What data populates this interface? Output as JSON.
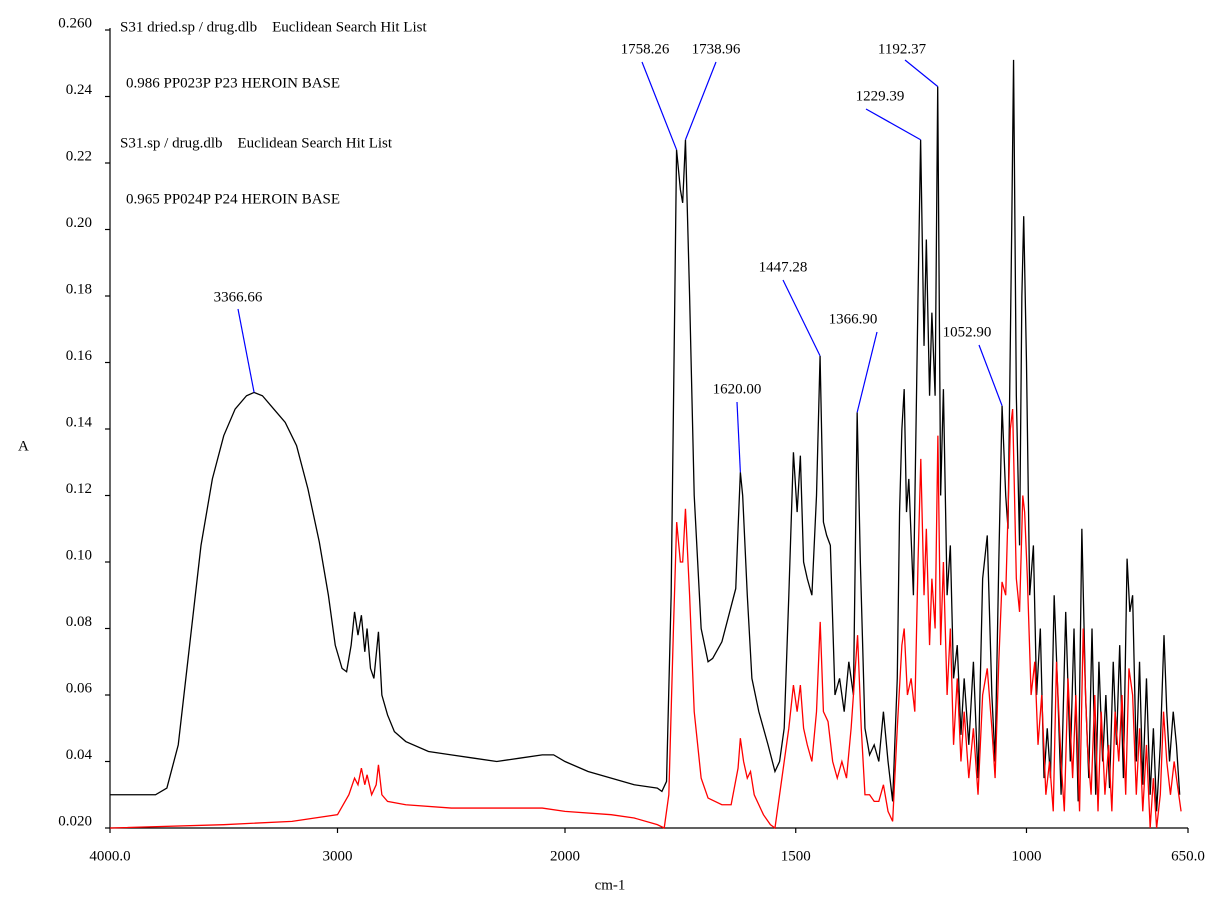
{
  "chart_data": {
    "type": "line",
    "xlabel": "cm-1",
    "ylabel": "A",
    "xlim": [
      4000,
      650
    ],
    "x_break": 2000,
    "xticks": [
      {
        "value": 4000,
        "label": "4000.0"
      },
      3000,
      2000,
      1500,
      1000,
      {
        "value": 650,
        "label": "650.0"
      }
    ],
    "ylim": [
      0.02,
      0.26
    ],
    "yticks": [
      {
        "value": 0.02,
        "label": "0.020"
      },
      0.04,
      0.06,
      0.08,
      {
        "value": 0.1,
        "label": "0.10"
      },
      0.12,
      0.14,
      0.16,
      0.18,
      {
        "value": 0.2,
        "label": "0.20"
      },
      0.22,
      0.24,
      {
        "value": 0.26,
        "label": "0.260"
      }
    ],
    "series": [
      {
        "name": "S31 dried.sp / drug.dlb    Euclidean Search Hit List",
        "hit": "0.986 PP023P P23 HEROIN BASE",
        "color": "#ff0000",
        "x": [
          4000,
          3500,
          3200,
          3000,
          2950,
          2925,
          2910,
          2895,
          2880,
          2870,
          2850,
          2830,
          2820,
          2805,
          2780,
          2700,
          2500,
          2300,
          2100,
          2000,
          1900,
          1850,
          1800,
          1785,
          1775,
          1765,
          1758,
          1750,
          1745,
          1739,
          1730,
          1720,
          1705,
          1690,
          1660,
          1640,
          1625,
          1620,
          1613,
          1605,
          1598,
          1590,
          1570,
          1555,
          1545,
          1530,
          1515,
          1505,
          1497,
          1490,
          1483,
          1475,
          1465,
          1455,
          1447,
          1440,
          1430,
          1420,
          1410,
          1400,
          1390,
          1380,
          1370,
          1366,
          1358,
          1350,
          1340,
          1330,
          1320,
          1310,
          1300,
          1290,
          1280,
          1270,
          1265,
          1258,
          1250,
          1242,
          1235,
          1229,
          1222,
          1217,
          1210,
          1205,
          1198,
          1192,
          1186,
          1180,
          1172,
          1165,
          1158,
          1150,
          1142,
          1135,
          1125,
          1115,
          1105,
          1095,
          1085,
          1075,
          1068,
          1060,
          1053,
          1045,
          1035,
          1030,
          1022,
          1015,
          1008,
          1004,
          998,
          990,
          982,
          975,
          967,
          958,
          950,
          942,
          935,
          925,
          918,
          910,
          900,
          893,
          885,
          877,
          868,
          860,
          852,
          845,
          838,
          830,
          822,
          815,
          808,
          800,
          793,
          785,
          778,
          770,
          762,
          755,
          748,
          740,
          732,
          725,
          718,
          710,
          703,
          696,
          688,
          680,
          672,
          665
        ],
        "values": [
          0.02,
          0.021,
          0.022,
          0.024,
          0.03,
          0.035,
          0.033,
          0.038,
          0.033,
          0.036,
          0.03,
          0.033,
          0.039,
          0.03,
          0.028,
          0.027,
          0.026,
          0.026,
          0.026,
          0.025,
          0.024,
          0.023,
          0.021,
          0.02,
          0.03,
          0.08,
          0.112,
          0.1,
          0.1,
          0.116,
          0.09,
          0.055,
          0.035,
          0.029,
          0.027,
          0.027,
          0.038,
          0.047,
          0.04,
          0.035,
          0.037,
          0.03,
          0.024,
          0.021,
          0.02,
          0.035,
          0.05,
          0.063,
          0.055,
          0.063,
          0.05,
          0.045,
          0.04,
          0.055,
          0.082,
          0.055,
          0.052,
          0.04,
          0.035,
          0.04,
          0.035,
          0.05,
          0.07,
          0.078,
          0.05,
          0.03,
          0.03,
          0.028,
          0.028,
          0.033,
          0.025,
          0.022,
          0.05,
          0.075,
          0.08,
          0.06,
          0.065,
          0.055,
          0.1,
          0.131,
          0.09,
          0.11,
          0.075,
          0.095,
          0.08,
          0.138,
          0.075,
          0.1,
          0.06,
          0.08,
          0.045,
          0.065,
          0.04,
          0.055,
          0.035,
          0.05,
          0.03,
          0.06,
          0.068,
          0.05,
          0.035,
          0.07,
          0.094,
          0.09,
          0.14,
          0.146,
          0.095,
          0.085,
          0.12,
          0.115,
          0.095,
          0.06,
          0.07,
          0.045,
          0.06,
          0.03,
          0.04,
          0.025,
          0.07,
          0.04,
          0.025,
          0.065,
          0.035,
          0.06,
          0.025,
          0.08,
          0.045,
          0.03,
          0.06,
          0.025,
          0.055,
          0.03,
          0.045,
          0.025,
          0.055,
          0.04,
          0.06,
          0.03,
          0.068,
          0.06,
          0.03,
          0.05,
          0.025,
          0.045,
          0.02,
          0.035,
          0.02,
          0.03,
          0.055,
          0.04,
          0.03,
          0.04,
          0.032,
          0.025
        ]
      },
      {
        "name": "S31.sp / drug.dlb    Euclidean Search Hit List",
        "hit": "0.965 PP024P P24 HEROIN BASE",
        "color": "#000000",
        "x": [
          4000,
          3800,
          3750,
          3700,
          3650,
          3600,
          3550,
          3500,
          3450,
          3400,
          3366.66,
          3330,
          3280,
          3230,
          3180,
          3130,
          3080,
          3040,
          3010,
          2980,
          2960,
          2940,
          2925,
          2910,
          2895,
          2880,
          2870,
          2855,
          2840,
          2820,
          2805,
          2780,
          2750,
          2700,
          2600,
          2500,
          2400,
          2300,
          2200,
          2100,
          2050,
          2000,
          1950,
          1900,
          1850,
          1800,
          1790,
          1780,
          1770,
          1762,
          1758.26,
          1750,
          1745,
          1738.96,
          1730,
          1720,
          1705,
          1690,
          1680,
          1660,
          1645,
          1630,
          1625,
          1620,
          1615,
          1605,
          1595,
          1580,
          1560,
          1545,
          1535,
          1525,
          1515,
          1505,
          1497,
          1490,
          1483,
          1475,
          1465,
          1455,
          1447.28,
          1440,
          1433,
          1425,
          1415,
          1405,
          1395,
          1385,
          1375,
          1366.9,
          1360,
          1350,
          1340,
          1330,
          1320,
          1310,
          1300,
          1290,
          1280,
          1275,
          1270,
          1265,
          1260,
          1255,
          1245,
          1235,
          1229.39,
          1222,
          1217,
          1210,
          1205,
          1198,
          1192.37,
          1186,
          1180,
          1172,
          1165,
          1158,
          1150,
          1142,
          1135,
          1125,
          1115,
          1105,
          1095,
          1085,
          1075,
          1068,
          1060,
          1052.9,
          1045,
          1040,
          1032,
          1028,
          1022,
          1015,
          1010,
          1006,
          1000,
          993,
          985,
          978,
          970,
          962,
          955,
          948,
          940,
          932,
          925,
          915,
          905,
          897,
          888,
          880,
          872,
          865,
          858,
          850,
          843,
          835,
          828,
          820,
          812,
          805,
          798,
          790,
          782,
          776,
          770,
          762,
          755,
          748,
          740,
          732,
          725,
          718,
          710,
          702,
          696,
          690,
          682,
          675,
          668
        ],
        "values": [
          0.03,
          0.03,
          0.032,
          0.045,
          0.075,
          0.105,
          0.125,
          0.138,
          0.146,
          0.15,
          0.151,
          0.15,
          0.146,
          0.142,
          0.135,
          0.122,
          0.106,
          0.09,
          0.075,
          0.068,
          0.067,
          0.075,
          0.085,
          0.078,
          0.084,
          0.073,
          0.08,
          0.068,
          0.065,
          0.079,
          0.06,
          0.054,
          0.049,
          0.046,
          0.043,
          0.042,
          0.041,
          0.04,
          0.041,
          0.042,
          0.042,
          0.04,
          0.037,
          0.035,
          0.033,
          0.032,
          0.031,
          0.034,
          0.09,
          0.18,
          0.224,
          0.212,
          0.208,
          0.227,
          0.18,
          0.12,
          0.08,
          0.07,
          0.071,
          0.076,
          0.084,
          0.092,
          0.11,
          0.127,
          0.12,
          0.09,
          0.065,
          0.055,
          0.045,
          0.037,
          0.04,
          0.05,
          0.09,
          0.133,
          0.115,
          0.132,
          0.1,
          0.095,
          0.09,
          0.12,
          0.162,
          0.112,
          0.108,
          0.105,
          0.06,
          0.065,
          0.055,
          0.07,
          0.06,
          0.145,
          0.1,
          0.05,
          0.042,
          0.045,
          0.04,
          0.055,
          0.04,
          0.028,
          0.065,
          0.115,
          0.14,
          0.152,
          0.115,
          0.125,
          0.09,
          0.18,
          0.227,
          0.165,
          0.197,
          0.15,
          0.175,
          0.15,
          0.243,
          0.12,
          0.152,
          0.09,
          0.105,
          0.065,
          0.075,
          0.048,
          0.065,
          0.045,
          0.07,
          0.035,
          0.095,
          0.108,
          0.06,
          0.04,
          0.1,
          0.147,
          0.12,
          0.11,
          0.2,
          0.251,
          0.15,
          0.105,
          0.18,
          0.204,
          0.16,
          0.09,
          0.105,
          0.06,
          0.08,
          0.035,
          0.05,
          0.035,
          0.09,
          0.06,
          0.03,
          0.085,
          0.04,
          0.08,
          0.028,
          0.11,
          0.06,
          0.035,
          0.08,
          0.03,
          0.07,
          0.04,
          0.06,
          0.032,
          0.07,
          0.045,
          0.075,
          0.035,
          0.101,
          0.085,
          0.09,
          0.04,
          0.07,
          0.033,
          0.065,
          0.03,
          0.05,
          0.025,
          0.045,
          0.078,
          0.055,
          0.04,
          0.055,
          0.045,
          0.03
        ]
      }
    ],
    "annotations": [
      {
        "text": "3366.66",
        "x": 3366.66,
        "y": 0.151
      },
      {
        "text": "1758.26",
        "x": 1758.26,
        "y": 0.224
      },
      {
        "text": "1738.96",
        "x": 1738.96,
        "y": 0.227
      },
      {
        "text": "1192.37",
        "x": 1192.37,
        "y": 0.243
      },
      {
        "text": "1229.39",
        "x": 1229.39,
        "y": 0.227
      },
      {
        "text": "1447.28",
        "x": 1447.28,
        "y": 0.162
      },
      {
        "text": "1366.90",
        "x": 1366.9,
        "y": 0.145
      },
      {
        "text": "1620.00",
        "x": 1620,
        "y": 0.127
      },
      {
        "text": "1052.90",
        "x": 1052.9,
        "y": 0.147
      }
    ]
  }
}
